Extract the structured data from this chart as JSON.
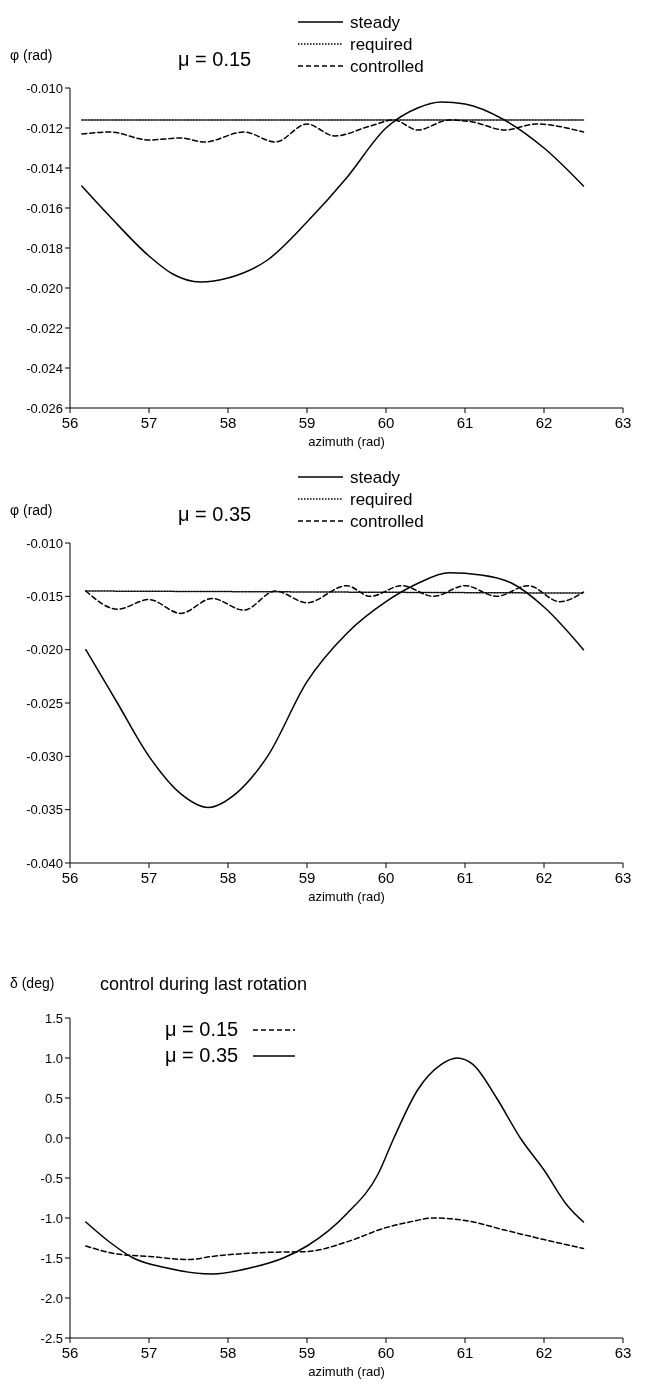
{
  "chart_data": [
    {
      "type": "line",
      "ylabel": "φ (rad)",
      "xlabel": "azimuth (rad)",
      "annotations": [
        "μ = 0.15"
      ],
      "legend": "top",
      "xlim": [
        56,
        63
      ],
      "xticks": [
        56,
        57,
        58,
        59,
        60,
        61,
        62,
        63
      ],
      "ylim": [
        -0.026,
        -0.01
      ],
      "yticks": [
        {
          "value": -0.026,
          "label": "-0.026"
        },
        {
          "value": -0.024,
          "label": "-0.024"
        },
        {
          "value": -0.022,
          "label": "-0.022"
        },
        {
          "value": -0.02,
          "label": "-0.020"
        },
        {
          "value": -0.018,
          "label": "-0.018"
        },
        {
          "value": -0.016,
          "label": "-0.016"
        },
        {
          "value": -0.014,
          "label": "-0.014"
        },
        {
          "value": -0.012,
          "label": "-0.012"
        },
        {
          "value": -0.01,
          "label": "-0.010"
        }
      ],
      "series": [
        {
          "name": "steady",
          "color": "#000000",
          "line_style": "solid",
          "x": [
            56.15,
            56.5,
            57.0,
            57.3,
            57.65,
            58.0,
            58.5,
            59.0,
            59.5,
            60.0,
            60.4,
            60.7,
            61.0,
            61.5,
            62.0,
            62.5
          ],
          "values": [
            -0.0149,
            -0.0164,
            -0.0184,
            -0.0193,
            -0.0197,
            -0.0195,
            -0.0186,
            -0.0167,
            -0.0145,
            -0.012,
            -0.011,
            -0.0107,
            -0.0108,
            -0.0116,
            -0.013,
            -0.0149
          ]
        },
        {
          "name": "required",
          "color": "#000000",
          "line_style": "dotted",
          "x": [
            56.15,
            62.5
          ],
          "values": [
            -0.0116,
            -0.0116
          ]
        },
        {
          "name": "controlled",
          "color": "#000000",
          "line_style": "dashed",
          "x": [
            56.15,
            56.5,
            57.0,
            57.4,
            57.7,
            58.2,
            58.6,
            59.0,
            59.35,
            59.8,
            60.1,
            60.4,
            60.8,
            61.1,
            61.5,
            61.9,
            62.5
          ],
          "values": [
            -0.0123,
            -0.0122,
            -0.0126,
            -0.0125,
            -0.0127,
            -0.0122,
            -0.0127,
            -0.0118,
            -0.0124,
            -0.0119,
            -0.0116,
            -0.0121,
            -0.0116,
            -0.0117,
            -0.0121,
            -0.0118,
            -0.0122
          ]
        }
      ]
    },
    {
      "type": "line",
      "ylabel": "φ (rad)",
      "xlabel": "azimuth (rad)",
      "annotations": [
        "μ = 0.35"
      ],
      "legend": "top",
      "xlim": [
        56,
        63
      ],
      "xticks": [
        56,
        57,
        58,
        59,
        60,
        61,
        62,
        63
      ],
      "ylim": [
        -0.04,
        -0.01
      ],
      "yticks": [
        {
          "value": -0.04,
          "label": "-0.040"
        },
        {
          "value": -0.035,
          "label": "-0.035"
        },
        {
          "value": -0.03,
          "label": "-0.030"
        },
        {
          "value": -0.025,
          "label": "-0.025"
        },
        {
          "value": -0.02,
          "label": "-0.020"
        },
        {
          "value": -0.015,
          "label": "-0.015"
        },
        {
          "value": -0.01,
          "label": "-0.010"
        }
      ],
      "series": [
        {
          "name": "steady",
          "color": "#000000",
          "line_style": "solid",
          "x": [
            56.2,
            56.6,
            57.0,
            57.4,
            57.75,
            58.1,
            58.5,
            59.0,
            59.5,
            60.0,
            60.4,
            60.8,
            61.2,
            61.6,
            62.0,
            62.5
          ],
          "values": [
            -0.02,
            -0.025,
            -0.03,
            -0.0335,
            -0.0348,
            -0.0335,
            -0.03,
            -0.023,
            -0.0185,
            -0.0155,
            -0.0138,
            -0.0128,
            -0.013,
            -0.0138,
            -0.016,
            -0.02
          ]
        },
        {
          "name": "required",
          "color": "#000000",
          "line_style": "dotted",
          "x": [
            56.2,
            62.5
          ],
          "values": [
            -0.0145,
            -0.0147
          ]
        },
        {
          "name": "controlled",
          "color": "#000000",
          "line_style": "dashed",
          "x": [
            56.2,
            56.6,
            57.0,
            57.4,
            57.8,
            58.2,
            58.6,
            59.0,
            59.5,
            59.8,
            60.2,
            60.6,
            61.0,
            61.4,
            61.8,
            62.2,
            62.5
          ],
          "values": [
            -0.0145,
            -0.0162,
            -0.0153,
            -0.0166,
            -0.0152,
            -0.0163,
            -0.0145,
            -0.0156,
            -0.014,
            -0.015,
            -0.014,
            -0.015,
            -0.014,
            -0.015,
            -0.014,
            -0.0155,
            -0.0146
          ]
        }
      ]
    },
    {
      "type": "line",
      "title": "control during last  rotation",
      "ylabel": "δ (deg)",
      "xlabel": "azimuth (rad)",
      "legend": "top left",
      "xlim": [
        56,
        63
      ],
      "xticks": [
        56,
        57,
        58,
        59,
        60,
        61,
        62,
        63
      ],
      "ylim": [
        -2.5,
        1.5
      ],
      "yticks": [
        {
          "value": -2.5,
          "label": "-2.5"
        },
        {
          "value": -2,
          "label": "-2.0"
        },
        {
          "value": -1.5,
          "label": "-1.5"
        },
        {
          "value": -1,
          "label": "-1.0"
        },
        {
          "value": -0.5,
          "label": "-0.5"
        },
        {
          "value": 0,
          "label": "0.0"
        },
        {
          "value": 0.5,
          "label": "0.5"
        },
        {
          "value": 1,
          "label": "1.0"
        },
        {
          "value": 1.5,
          "label": "1.5"
        }
      ],
      "series": [
        {
          "name": "μ = 0.15",
          "color": "#000000",
          "line_style": "dashed",
          "x": [
            56.2,
            56.6,
            57.0,
            57.5,
            57.8,
            58.5,
            59.0,
            59.5,
            60.0,
            60.3,
            60.6,
            61.0,
            61.5,
            62.0,
            62.5
          ],
          "values": [
            -1.35,
            -1.45,
            -1.48,
            -1.52,
            -1.48,
            -1.43,
            -1.42,
            -1.3,
            -1.12,
            -1.05,
            -1.0,
            -1.03,
            -1.15,
            -1.27,
            -1.38
          ]
        },
        {
          "name": "μ = 0.35",
          "color": "#000000",
          "line_style": "solid",
          "x": [
            56.2,
            56.5,
            56.8,
            57.2,
            57.8,
            58.3,
            58.7,
            59.0,
            59.5,
            59.9,
            60.1,
            60.4,
            60.7,
            60.9,
            61.1,
            61.4,
            61.7,
            62.0,
            62.3,
            62.5
          ],
          "values": [
            -1.05,
            -1.3,
            -1.5,
            -1.62,
            -1.7,
            -1.62,
            -1.5,
            -1.35,
            -0.95,
            -0.45,
            0.0,
            0.6,
            0.92,
            1.0,
            0.92,
            0.5,
            0.0,
            -0.4,
            -0.85,
            -1.05
          ]
        }
      ]
    }
  ]
}
